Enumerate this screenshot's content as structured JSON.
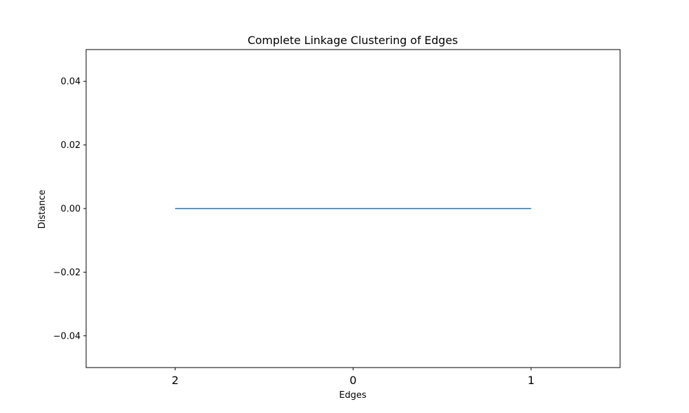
{
  "chart_data": {
    "type": "line",
    "title": "Complete Linkage Clustering of Edges",
    "xlabel": "Edges",
    "ylabel": "Distance",
    "categories": [
      "2",
      "0",
      "1"
    ],
    "ylim": [
      -0.05,
      0.05
    ],
    "yticks": [
      -0.04,
      -0.02,
      0.0,
      0.02,
      0.04
    ],
    "ytick_labels": [
      "−0.04",
      "−0.02",
      "0.00",
      "0.02",
      "0.04"
    ],
    "links": [
      {
        "from": "2",
        "to": "1",
        "distance": 0.0
      }
    ],
    "line_color": "#1f77b4",
    "grid": false
  }
}
